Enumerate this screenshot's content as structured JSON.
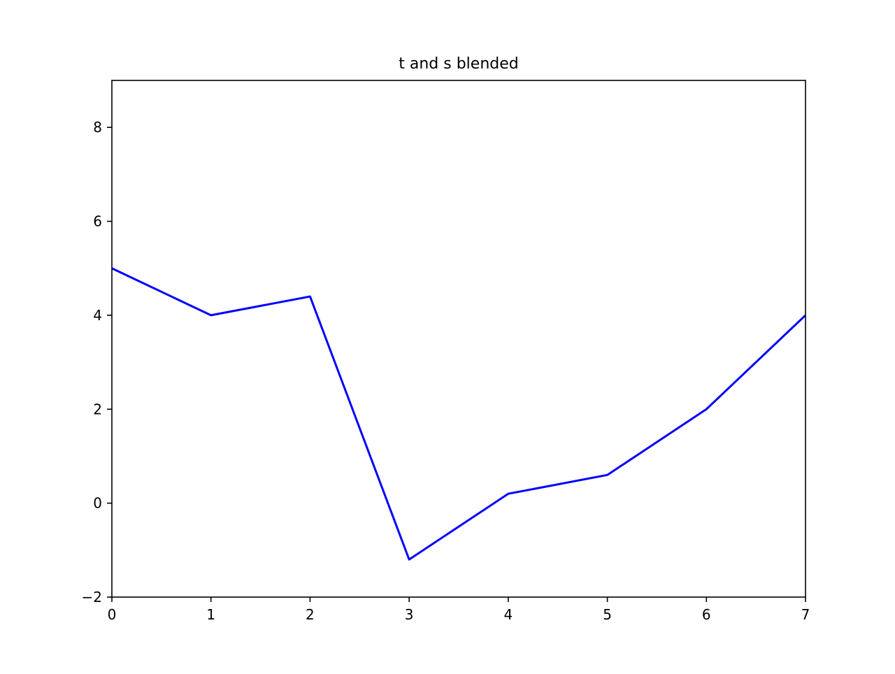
{
  "chart_data": {
    "type": "line",
    "title": "t and s blended",
    "xlabel": "",
    "ylabel": "",
    "x": [
      0,
      1,
      2,
      3,
      4,
      5,
      6,
      7
    ],
    "series": [
      {
        "values": [
          5,
          4,
          4.4,
          -1.2,
          0.2,
          0.6,
          2,
          4
        ],
        "color": "#0000ff"
      }
    ],
    "xlim": [
      0,
      7
    ],
    "ylim": [
      -2,
      9
    ],
    "xticks": [
      "0",
      "1",
      "2",
      "3",
      "4",
      "5",
      "6",
      "7"
    ],
    "yticks": [
      "−2",
      "0",
      "2",
      "4",
      "6",
      "8"
    ],
    "ytick_values": [
      -2,
      0,
      2,
      4,
      6,
      8
    ],
    "grid": false
  }
}
